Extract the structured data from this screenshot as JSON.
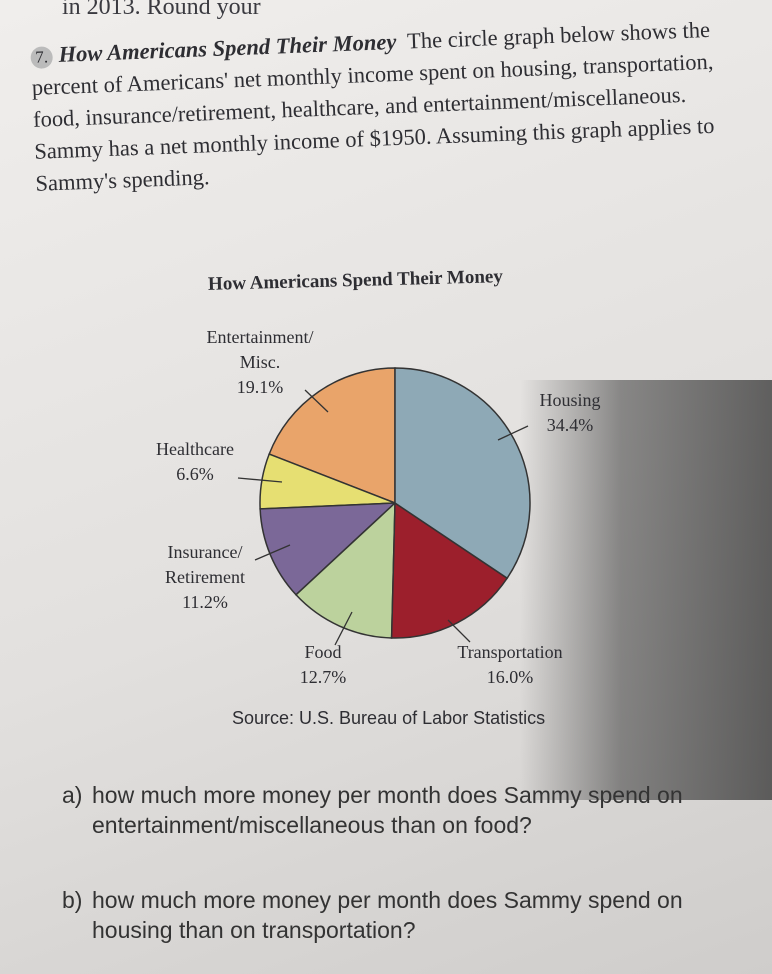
{
  "header": {
    "text": "in 2013. Round your"
  },
  "problem": {
    "number": "7.",
    "title": "How Americans Spend Their Money",
    "text": "The circle graph below shows the percent of Americans' net monthly income spent on housing, transportation, food, insurance/retirement, healthcare, and entertainment/miscellaneous. Sammy has a net monthly income of $1950. Assuming this graph applies to Sammy's spending."
  },
  "chart_data": {
    "type": "pie",
    "title": "How Americans Spend Their Money",
    "categories": [
      "Housing",
      "Transportation",
      "Food",
      "Insurance/ Retirement",
      "Healthcare",
      "Entertainment/ Misc."
    ],
    "values": [
      34.4,
      16.0,
      12.7,
      11.2,
      6.6,
      19.1
    ],
    "value_labels": [
      "34.4%",
      "16.0%",
      "12.7%",
      "11.2%",
      "6.6%",
      "19.1%"
    ],
    "colors": [
      "#8ea9b6",
      "#9c1f2c",
      "#bcd29d",
      "#7b6898",
      "#e6df72",
      "#e9a46a"
    ],
    "source": "Source: U.S. Bureau of Labor Statistics"
  },
  "questions": [
    {
      "label": "a)",
      "text": "how much more money per month does Sammy spend on entertainment/miscellaneous than on food?"
    },
    {
      "label": "b)",
      "text": "how much more money per month does Sammy spend on housing than on transportation?"
    }
  ]
}
